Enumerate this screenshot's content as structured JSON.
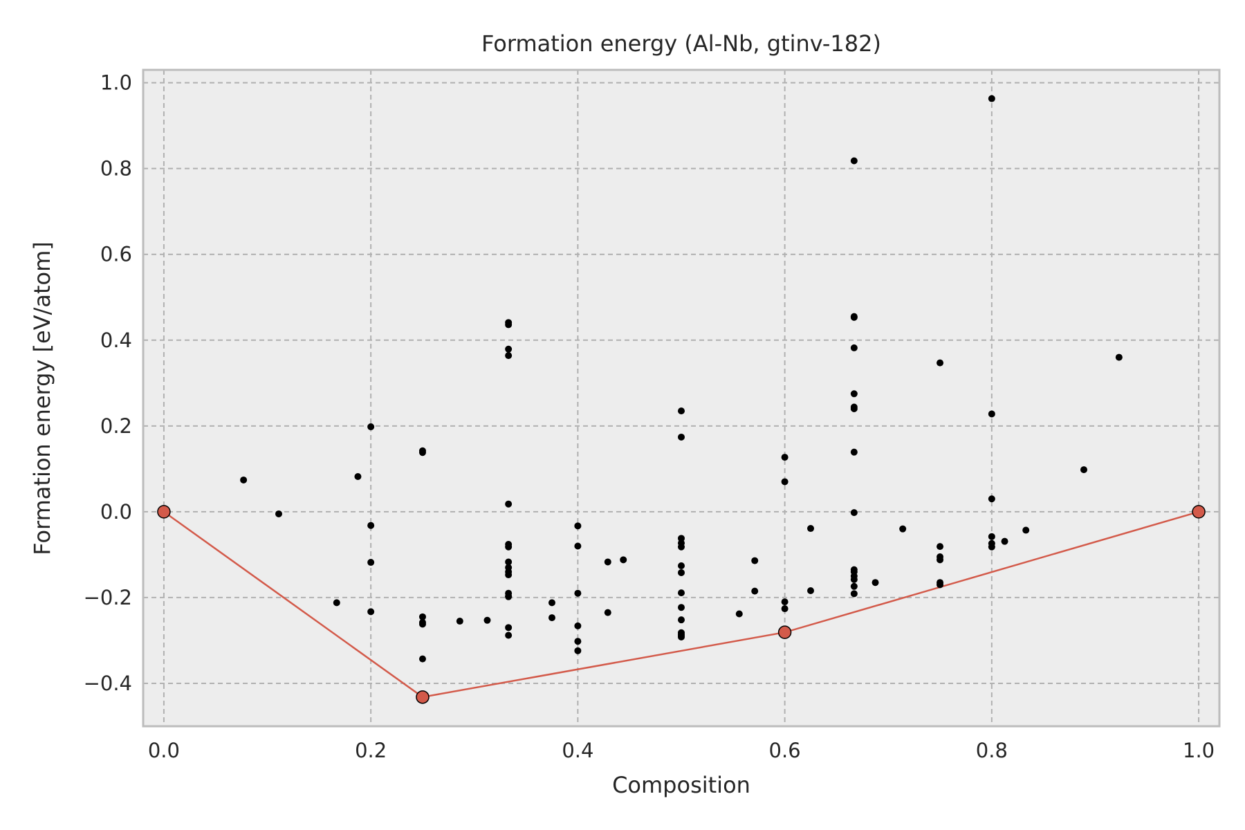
{
  "chart_data": {
    "type": "scatter",
    "title": "Formation energy (Al-Nb, gtinv-182)",
    "xlabel": "Composition",
    "ylabel": "Formation energy [eV/atom]",
    "xlim": [
      -0.02,
      1.02
    ],
    "ylim": [
      -0.5,
      1.03
    ],
    "xticks": [
      0.0,
      0.2,
      0.4,
      0.6,
      0.8,
      1.0
    ],
    "xtick_labels": [
      "0.0",
      "0.2",
      "0.4",
      "0.6",
      "0.8",
      "1.0"
    ],
    "yticks": [
      -0.4,
      -0.2,
      0.0,
      0.2,
      0.4,
      0.6,
      0.8,
      1.0
    ],
    "ytick_labels": [
      "−0.4",
      "−0.2",
      "0.0",
      "0.2",
      "0.4",
      "0.6",
      "0.8",
      "1.0"
    ],
    "grid": true,
    "colors": {
      "background": "#ededed",
      "frame": "#bcbcbc",
      "grid": "#b0b0b0",
      "points": "#000000",
      "hull": "#d35a4a"
    },
    "series": [
      {
        "kind": "scatter",
        "x": [
          0.077,
          0.111,
          0.167,
          0.1875,
          0.2,
          0.2,
          0.2,
          0.2,
          0.25,
          0.25,
          0.25,
          0.25,
          0.25,
          0.25,
          0.286,
          0.3125,
          0.333,
          0.333,
          0.333,
          0.333,
          0.333,
          0.333,
          0.333,
          0.333,
          0.333,
          0.333,
          0.333,
          0.333,
          0.333,
          0.333,
          0.333,
          0.333,
          0.375,
          0.375,
          0.4,
          0.4,
          0.4,
          0.4,
          0.4,
          0.4,
          0.429,
          0.429,
          0.444,
          0.5,
          0.5,
          0.5,
          0.5,
          0.5,
          0.5,
          0.5,
          0.5,
          0.5,
          0.5,
          0.5,
          0.5,
          0.5,
          0.5,
          0.556,
          0.571,
          0.571,
          0.6,
          0.6,
          0.6,
          0.6,
          0.625,
          0.625,
          0.667,
          0.667,
          0.667,
          0.667,
          0.667,
          0.667,
          0.667,
          0.667,
          0.667,
          0.667,
          0.667,
          0.667,
          0.667,
          0.667,
          0.667,
          0.6875,
          0.714,
          0.75,
          0.75,
          0.75,
          0.75,
          0.75,
          0.75,
          0.8,
          0.8,
          0.8,
          0.8,
          0.8,
          0.8,
          0.8125,
          0.833,
          0.889,
          0.923
        ],
        "y": [
          0.074,
          -0.005,
          -0.212,
          0.082,
          0.198,
          -0.032,
          -0.118,
          -0.233,
          0.142,
          0.138,
          -0.245,
          -0.258,
          -0.262,
          -0.343,
          -0.255,
          -0.253,
          0.441,
          0.436,
          0.379,
          0.364,
          0.018,
          -0.076,
          -0.082,
          -0.117,
          -0.13,
          -0.14,
          -0.147,
          -0.19,
          -0.197,
          -0.27,
          -0.288,
          -0.198,
          -0.212,
          -0.247,
          -0.033,
          -0.08,
          -0.19,
          -0.266,
          -0.302,
          -0.324,
          -0.117,
          -0.235,
          -0.112,
          0.235,
          0.174,
          -0.062,
          -0.073,
          -0.082,
          -0.126,
          -0.142,
          -0.189,
          -0.223,
          -0.252,
          -0.282,
          -0.289,
          -0.292,
          -0.286,
          -0.238,
          -0.114,
          -0.185,
          0.127,
          0.07,
          -0.21,
          -0.226,
          -0.039,
          -0.184,
          0.818,
          0.455,
          0.453,
          0.382,
          0.275,
          0.244,
          0.24,
          0.139,
          -0.002,
          -0.135,
          -0.14,
          -0.15,
          -0.158,
          -0.174,
          -0.191,
          -0.165,
          -0.04,
          0.347,
          -0.081,
          -0.105,
          -0.112,
          -0.165,
          -0.17,
          0.963,
          0.228,
          0.03,
          -0.058,
          -0.074,
          -0.082,
          -0.069,
          -0.043,
          0.098,
          0.36
        ]
      },
      {
        "kind": "hull",
        "x": [
          0.0,
          0.25,
          0.6,
          1.0
        ],
        "y": [
          0.0,
          -0.432,
          -0.281,
          0.0
        ]
      }
    ]
  }
}
